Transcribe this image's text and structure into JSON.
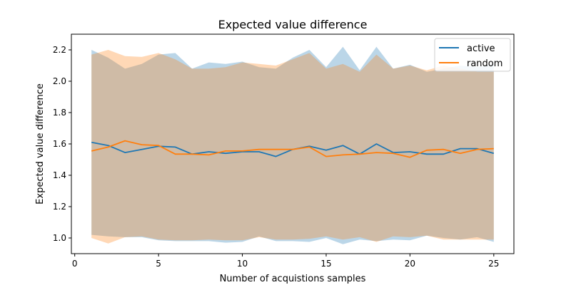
{
  "chart_data": {
    "type": "line",
    "title": "Expected value difference",
    "xlabel": "Number of acquistions samples",
    "ylabel": "Expected value difference",
    "xlim": [
      -0.2,
      26.2
    ],
    "ylim": [
      0.9,
      2.3
    ],
    "xticks": [
      0,
      5,
      10,
      15,
      20,
      25
    ],
    "yticks": [
      1.0,
      1.2,
      1.4,
      1.6,
      1.8,
      2.0,
      2.2
    ],
    "grid": false,
    "legend_position": "top-right",
    "x": [
      1,
      2,
      3,
      4,
      5,
      6,
      7,
      8,
      9,
      10,
      11,
      12,
      13,
      14,
      15,
      16,
      17,
      18,
      19,
      20,
      21,
      22,
      23,
      24,
      25
    ],
    "series": [
      {
        "name": "active",
        "color": "#1f77b4",
        "band_color": "#1f77b4",
        "values": [
          1.61,
          1.59,
          1.545,
          1.565,
          1.585,
          1.58,
          1.535,
          1.55,
          1.54,
          1.55,
          1.55,
          1.52,
          1.565,
          1.585,
          1.56,
          1.59,
          1.535,
          1.6,
          1.545,
          1.55,
          1.535,
          1.535,
          1.57,
          1.57,
          1.54
        ],
        "upper": [
          2.2,
          2.15,
          2.08,
          2.11,
          2.17,
          2.18,
          2.08,
          2.12,
          2.11,
          2.125,
          2.09,
          2.08,
          2.15,
          2.2,
          2.09,
          2.22,
          2.07,
          2.22,
          2.08,
          2.105,
          2.06,
          2.08,
          2.1,
          2.09,
          2.11
        ],
        "lower": [
          1.02,
          1.01,
          1.005,
          1.005,
          0.985,
          0.98,
          0.98,
          0.98,
          0.97,
          0.975,
          1.01,
          0.98,
          0.98,
          0.975,
          1.0,
          0.96,
          0.99,
          0.98,
          0.99,
          0.985,
          1.015,
          1.0,
          0.99,
          1.005,
          0.975
        ]
      },
      {
        "name": "random",
        "color": "#ff7f0e",
        "band_color": "#ff7f0e",
        "values": [
          1.555,
          1.58,
          1.62,
          1.595,
          1.59,
          1.535,
          1.535,
          1.53,
          1.555,
          1.555,
          1.565,
          1.565,
          1.565,
          1.58,
          1.52,
          1.53,
          1.535,
          1.545,
          1.54,
          1.515,
          1.56,
          1.565,
          1.54,
          1.565,
          1.57
        ],
        "upper": [
          2.17,
          2.2,
          2.16,
          2.155,
          2.18,
          2.14,
          2.08,
          2.08,
          2.09,
          2.12,
          2.11,
          2.1,
          2.14,
          2.18,
          2.08,
          2.11,
          2.06,
          2.17,
          2.08,
          2.1,
          2.07,
          2.1,
          2.08,
          2.06,
          2.06
        ],
        "lower": [
          1.0,
          0.965,
          1.005,
          1.01,
          0.99,
          0.985,
          0.985,
          0.99,
          0.985,
          0.985,
          1.005,
          0.99,
          0.99,
          0.995,
          1.01,
          0.99,
          1.005,
          0.975,
          1.01,
          1.005,
          1.015,
          0.99,
          0.99,
          0.99,
          0.99
        ]
      }
    ]
  }
}
